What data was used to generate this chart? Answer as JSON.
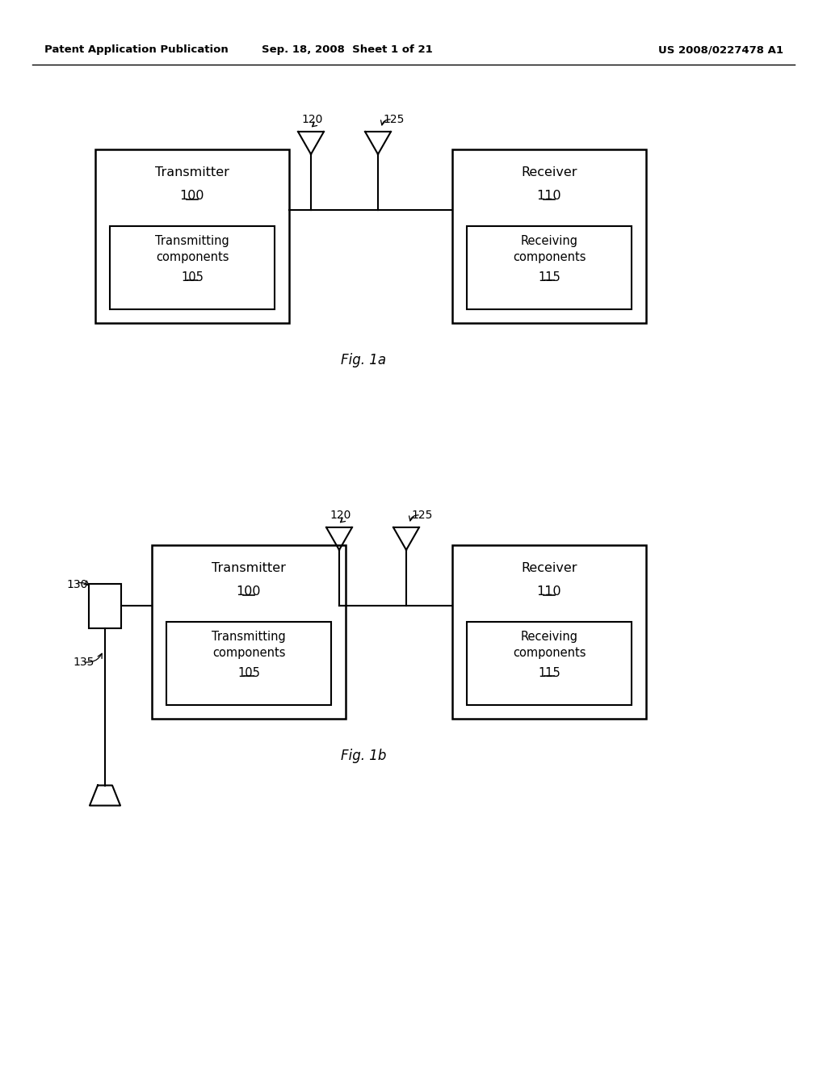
{
  "bg_color": "#ffffff",
  "header_left": "Patent Application Publication",
  "header_mid": "Sep. 18, 2008  Sheet 1 of 21",
  "header_right": "US 2008/0227478 A1",
  "fig1a_caption": "Fig. 1a",
  "fig1b_caption": "Fig. 1b",
  "fig_width": 10.24,
  "fig_height": 13.2,
  "dpi": 100
}
